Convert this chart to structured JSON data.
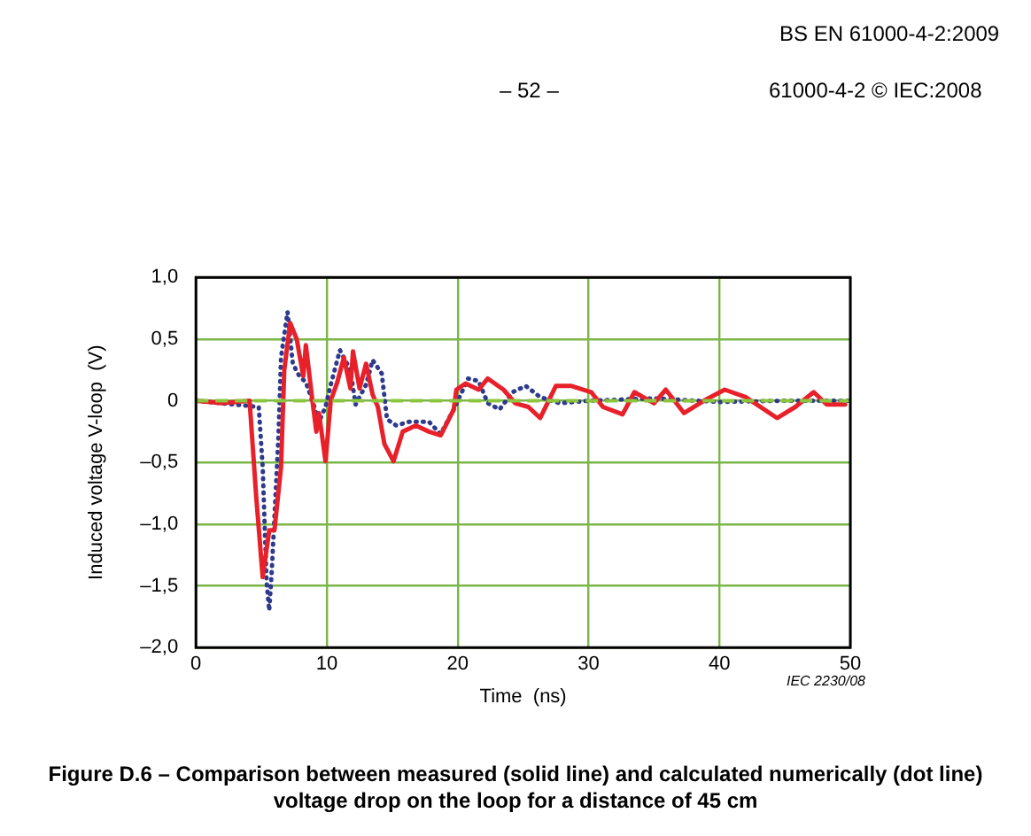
{
  "chart_data": {
    "type": "line",
    "title": "Figure D.6 – Comparison between measured (solid line) and calculated numerically (dot line) voltage drop on the loop for a distance of 45 cm",
    "xlabel": "Time  (ns)",
    "ylabel": "Induced voltage V-loop  (V)",
    "annotations": [
      "BS EN 61000-4-2:2009",
      "– 52 –",
      "61000-4-2 © IEC:2008",
      "IEC  2230/08"
    ],
    "xlim": [
      0,
      50
    ],
    "xticks": [
      0,
      10,
      20,
      30,
      40,
      50
    ],
    "ylim": [
      -2,
      1
    ],
    "yticks": [
      {
        "value": 1,
        "label": "1,0"
      },
      {
        "value": 0.5,
        "label": "0,5"
      },
      {
        "value": 0,
        "label": "0"
      },
      {
        "value": -0.5,
        "label": "–0,5"
      },
      {
        "value": -1,
        "label": "–1,0"
      },
      {
        "value": -1.5,
        "label": "–1,5"
      },
      {
        "value": -2,
        "label": "–2,0"
      }
    ],
    "grid": true,
    "legend": false,
    "marker": "none",
    "ref_lines": [
      {
        "axis": "y",
        "value": 0,
        "color": "#8cc63f",
        "line_style": "dashed"
      }
    ],
    "series": [
      {
        "color": "#e8202a",
        "line_style": "solid",
        "x": [
          0,
          2,
          4.1,
          4.6,
          5.1,
          5.6,
          6.0,
          6.5,
          6.75,
          7.2,
          7.7,
          8.2,
          8.4,
          8.9,
          9.2,
          9.4,
          9.9,
          10.3,
          10.8,
          11.3,
          11.8,
          12.0,
          12.5,
          13.0,
          13.5,
          13.9,
          14.4,
          15.1,
          15.8,
          16.8,
          17.8,
          18.7,
          19.7,
          19.9,
          20.6,
          21.6,
          22.3,
          23.5,
          24.4,
          25.4,
          26.3,
          27.5,
          28.7,
          30.2,
          31.1,
          32.6,
          33.5,
          35,
          35.9,
          37.3,
          38.8,
          40.4,
          42,
          44.4,
          45.8,
          47.2,
          48.2,
          49.6
        ],
        "values": [
          0,
          -0.02,
          0,
          -0.77,
          -1.43,
          -1.05,
          -1.05,
          -0.54,
          0.25,
          0.63,
          0.5,
          0.2,
          0.45,
          0,
          -0.25,
          -0.1,
          -0.49,
          0,
          0.15,
          0.35,
          0.1,
          0.4,
          0.1,
          0.3,
          0.05,
          -0.05,
          -0.35,
          -0.49,
          -0.25,
          -0.2,
          -0.25,
          -0.28,
          -0.07,
          0.09,
          0.14,
          0.09,
          0.18,
          0.09,
          -0.02,
          -0.05,
          -0.14,
          0.12,
          0.12,
          0.07,
          -0.05,
          -0.11,
          0.07,
          -0.02,
          0.09,
          -0.1,
          0,
          0.09,
          0.03,
          -0.14,
          -0.05,
          0.07,
          -0.03,
          -0.03
        ]
      },
      {
        "color": "#2e3a8c",
        "line_style": "dotted",
        "x": [
          0,
          4.8,
          5.1,
          5.4,
          5.6,
          5.8,
          6.3,
          6.5,
          7.0,
          7.4,
          7.9,
          8.4,
          8.9,
          9.4,
          9.9,
          10.3,
          11.0,
          11.8,
          12.2,
          13.0,
          13.5,
          14.2,
          14.6,
          15.3,
          16.3,
          17.8,
          18.7,
          19.7,
          20.8,
          21.6,
          22.3,
          23.2,
          24.2,
          25.2,
          26.3,
          27.8,
          30,
          35,
          40,
          45,
          50
        ],
        "values": [
          0,
          -0.05,
          -0.54,
          -1.47,
          -1.7,
          -1.37,
          -0.3,
          0.35,
          0.72,
          0.3,
          0.2,
          0.15,
          0,
          -0.17,
          -0.05,
          0.13,
          0.41,
          0.25,
          -0.03,
          0.13,
          0.33,
          0.22,
          -0.15,
          -0.2,
          -0.17,
          -0.17,
          -0.27,
          -0.07,
          0.18,
          0.16,
          -0.02,
          -0.07,
          0.07,
          0.12,
          0.03,
          -0.02,
          0,
          0.02,
          -0.01,
          0,
          0
        ]
      }
    ]
  }
}
